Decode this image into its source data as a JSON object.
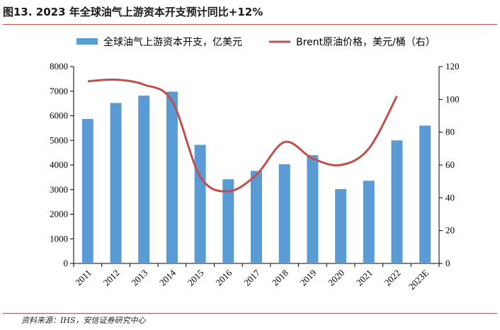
{
  "title": "图13. 2023 年全球油气上游资本开支预计同比+12%",
  "source": "资料来源：IHS，安信证券研究中心",
  "colors": {
    "bar": "#5b9bd5",
    "line": "#c0504d",
    "accent": "#c0504d"
  },
  "chart_data": {
    "type": "bar",
    "categories": [
      "2011",
      "2012",
      "2013",
      "2014",
      "2015",
      "2016",
      "2017",
      "2018",
      "2019",
      "2020",
      "2021",
      "2022",
      "2023E"
    ],
    "series": [
      {
        "name": "全球油气上游资本开支，亿美元",
        "type": "bar",
        "axis": "left",
        "values": [
          5870,
          6520,
          6820,
          6980,
          4820,
          3420,
          3760,
          4030,
          4400,
          3020,
          3360,
          5000,
          5600
        ]
      },
      {
        "name": "Brent原油价格，美元/桶（右）",
        "type": "line",
        "axis": "right",
        "values": [
          111,
          112,
          109,
          99,
          53,
          44,
          54,
          74,
          64,
          60,
          70,
          102,
          null
        ]
      }
    ],
    "y_left": {
      "min": 0,
      "max": 8000,
      "ticks": [
        "0",
        "1000",
        "2000",
        "3000",
        "4000",
        "5000",
        "6000",
        "7000",
        "8000"
      ]
    },
    "y_right": {
      "min": 0,
      "max": 120,
      "ticks": [
        "0",
        "20",
        "40",
        "60",
        "80",
        "100",
        "120"
      ]
    },
    "legend": {
      "position": "top"
    },
    "grid": false
  }
}
